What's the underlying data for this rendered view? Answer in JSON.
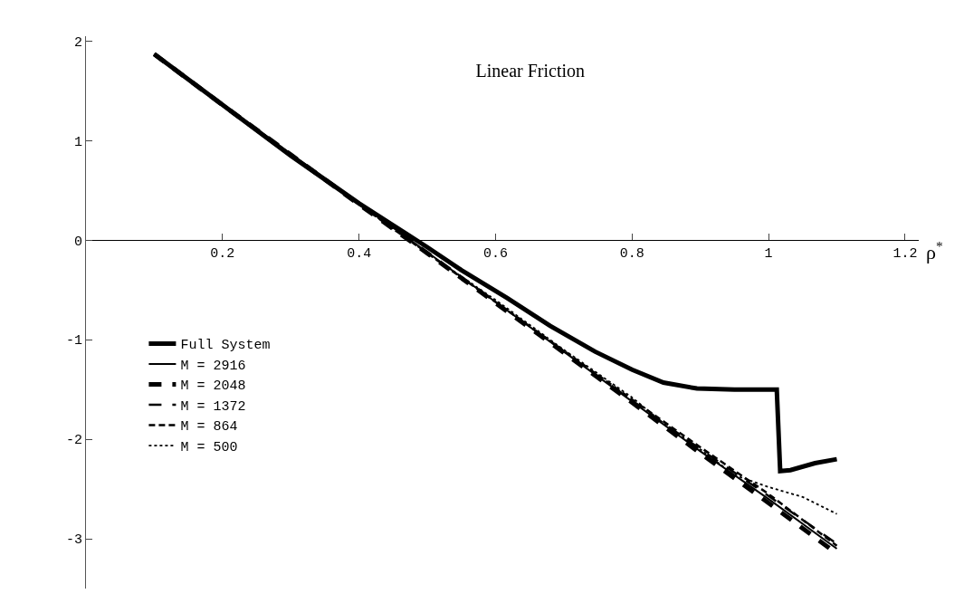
{
  "chart_data": {
    "type": "line",
    "title": "Linear Friction",
    "xlabel": "ρ$^{*}$",
    "xlim": [
      0,
      1.22
    ],
    "ylim": [
      -3.5,
      2.05
    ],
    "xticks": [
      0.2,
      0.4,
      0.6,
      0.8,
      1,
      1.2
    ],
    "yticks": [
      -3,
      -2,
      -1,
      0,
      1,
      2
    ],
    "legend": "bottom left",
    "marker": "none",
    "series": [
      {
        "name": "Full System",
        "color": "#000000",
        "line_style": "solid",
        "x": [
          0.1,
          0.2,
          0.3,
          0.4,
          0.45,
          0.5,
          0.55,
          0.617,
          0.68,
          0.746,
          0.8,
          0.846,
          0.895,
          0.95,
          1.012,
          1.017,
          1.032,
          1.068,
          1.1
        ],
        "values": [
          1.87,
          1.36,
          0.85,
          0.37,
          0.15,
          -0.07,
          -0.3,
          -0.58,
          -0.86,
          -1.12,
          -1.3,
          -1.43,
          -1.49,
          -1.5,
          -1.5,
          -2.32,
          -2.31,
          -2.24,
          -2.2
        ]
      },
      {
        "name": "M = 2916",
        "color": "#000000",
        "line_style": "solid",
        "x": [
          0.1,
          0.2,
          0.3,
          0.4,
          0.5,
          0.6,
          0.7,
          0.8,
          0.9,
          1.0,
          1.1
        ],
        "values": [
          1.87,
          1.37,
          0.87,
          0.37,
          -0.12,
          -0.62,
          -1.12,
          -1.62,
          -2.12,
          -2.6,
          -3.1
        ]
      },
      {
        "name": "M = 2048",
        "color": "#000000",
        "line_style": "dashed",
        "x": [
          0.1,
          0.2,
          0.3,
          0.4,
          0.5,
          0.6,
          0.7,
          0.8,
          0.9,
          1.0,
          1.1
        ],
        "values": [
          1.87,
          1.36,
          0.86,
          0.36,
          -0.13,
          -0.63,
          -1.13,
          -1.63,
          -2.14,
          -2.64,
          -3.15
        ]
      },
      {
        "name": "M = 1372",
        "color": "#000000",
        "line_style": "dashed",
        "x": [
          0.1,
          0.2,
          0.3,
          0.4,
          0.5,
          0.6,
          0.7,
          0.8,
          0.9,
          1.0,
          1.1
        ],
        "values": [
          1.87,
          1.36,
          0.86,
          0.36,
          -0.13,
          -0.62,
          -1.12,
          -1.61,
          -2.1,
          -2.57,
          -3.05
        ]
      },
      {
        "name": "M = 864",
        "color": "#000000",
        "line_style": "dashed",
        "x": [
          0.1,
          0.2,
          0.3,
          0.4,
          0.5,
          0.6,
          0.7,
          0.8,
          0.9,
          1.0,
          1.1
        ],
        "values": [
          1.87,
          1.36,
          0.86,
          0.36,
          -0.13,
          -0.62,
          -1.11,
          -1.6,
          -2.08,
          -2.55,
          -3.07
        ]
      },
      {
        "name": "M = 500",
        "color": "#000000",
        "line_style": "dotted",
        "x": [
          0.1,
          0.2,
          0.3,
          0.4,
          0.5,
          0.6,
          0.7,
          0.8,
          0.85,
          0.9,
          0.95,
          1.0,
          1.05,
          1.1
        ],
        "values": [
          1.87,
          1.36,
          0.86,
          0.36,
          -0.13,
          -0.6,
          -1.1,
          -1.58,
          -1.86,
          -2.1,
          -2.36,
          -2.48,
          -2.58,
          -2.75
        ]
      }
    ]
  }
}
